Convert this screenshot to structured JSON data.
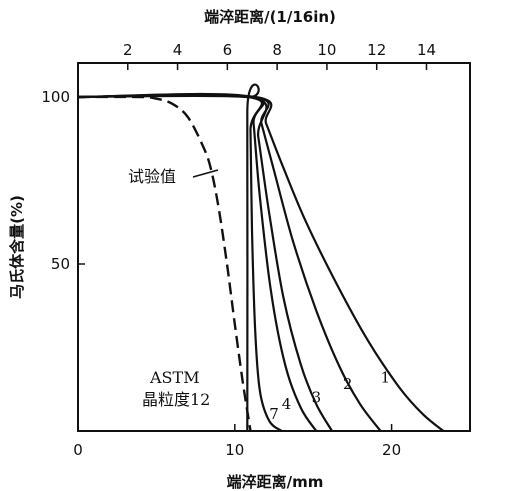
{
  "chart_data": {
    "type": "line",
    "title": "",
    "xlabel_bottom": "端淬距离/mm",
    "xlabel_top": "端淬距离/(1/16in)",
    "ylabel": "马氏体含量(%)",
    "xlim": [
      0,
      25
    ],
    "ylim": [
      0,
      110
    ],
    "x_ticks_bottom": [
      0,
      10,
      20
    ],
    "x_tick_labels_bottom": [
      "0",
      "10",
      "20"
    ],
    "x_ticks_top_16in": [
      2,
      4,
      6,
      8,
      10,
      12,
      14
    ],
    "x_tick_labels_top": [
      "2",
      "4",
      "6",
      "8",
      "10",
      "12",
      "14"
    ],
    "y_ticks": [
      0,
      50,
      100
    ],
    "y_tick_labels": [
      "",
      "50",
      "100"
    ],
    "grid": false,
    "annotations": {
      "test_value": "试验值",
      "astm_line1": "ASTM",
      "astm_line2": "晶粒度12"
    },
    "series": [
      {
        "name": "试验值",
        "style": "dashed",
        "x": [
          0,
          4,
          5,
          6,
          7,
          8,
          8.5,
          9,
          9.5,
          10,
          10.5,
          10.8,
          11
        ],
        "y": [
          100,
          100,
          99.5,
          98,
          94,
          85,
          78,
          66,
          50,
          32,
          15,
          6,
          0
        ]
      },
      {
        "name": "ASTM 晶粒度12",
        "style": "solid",
        "x": [
          0,
          10.7,
          10.8,
          10.8
        ],
        "y": [
          100,
          100,
          95,
          0
        ]
      },
      {
        "name": "7",
        "style": "solid",
        "x": [
          0,
          10.9,
          11.0,
          11.1,
          11.3,
          11.6,
          12.2,
          13
        ],
        "y": [
          100,
          100,
          90,
          60,
          30,
          12,
          3,
          0
        ]
      },
      {
        "name": "4",
        "style": "solid",
        "x": [
          0,
          11,
          11.2,
          11.6,
          12.3,
          13.2,
          14.2,
          15.2
        ],
        "y": [
          100,
          100,
          92,
          70,
          42,
          20,
          7,
          0
        ]
      },
      {
        "name": "3",
        "style": "solid",
        "x": [
          0,
          11.1,
          11.5,
          12.2,
          13.1,
          14.2,
          15.2,
          16.2
        ],
        "y": [
          100,
          100,
          88,
          65,
          40,
          20,
          8,
          0
        ]
      },
      {
        "name": "2",
        "style": "solid",
        "x": [
          0,
          11.2,
          11.7,
          12.5,
          13.7,
          15.2,
          16.7,
          18,
          19.3
        ],
        "y": [
          100,
          100,
          92,
          78,
          57,
          36,
          19,
          8,
          0
        ]
      },
      {
        "name": "1",
        "style": "solid",
        "x": [
          0,
          11.3,
          12,
          13,
          14.5,
          16.5,
          18.5,
          20.5,
          22,
          23.3
        ],
        "y": [
          100,
          100,
          92,
          80,
          63,
          44,
          27,
          13,
          5,
          0
        ]
      }
    ],
    "curve_labels": [
      {
        "text": "1",
        "x": 19.6,
        "y": 11
      },
      {
        "text": "2",
        "x": 17.2,
        "y": 9
      },
      {
        "text": "3",
        "x": 15.2,
        "y": 5
      },
      {
        "text": "4",
        "x": 13.3,
        "y": 3
      },
      {
        "text": "7",
        "x": 12.5,
        "y": 0
      }
    ]
  }
}
